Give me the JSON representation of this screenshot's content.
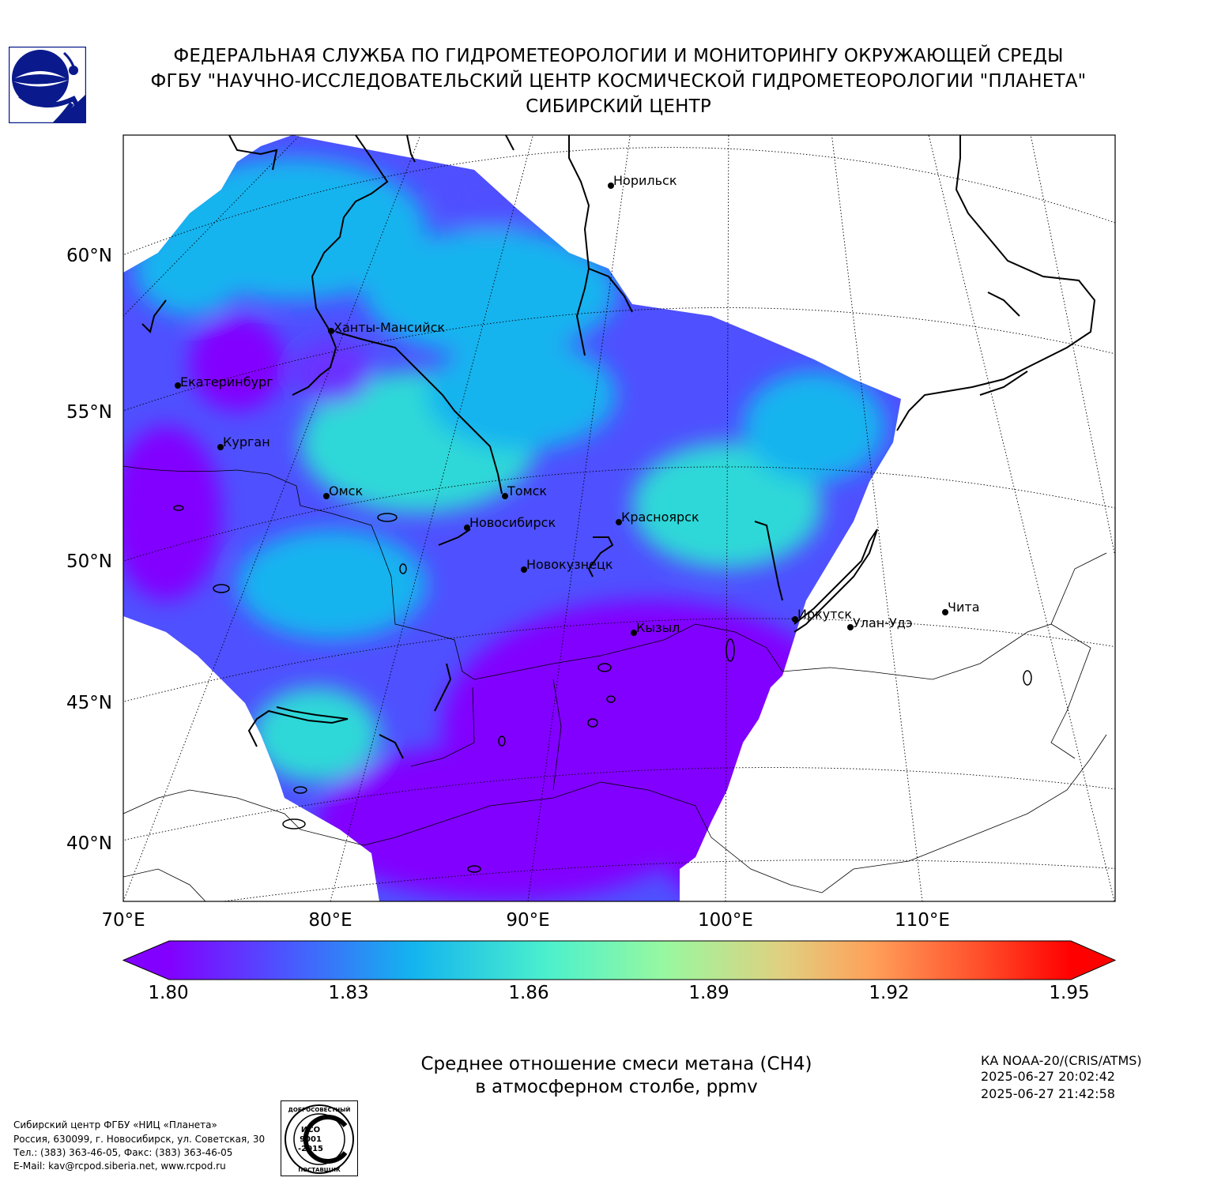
{
  "header": {
    "line1": "ФЕДЕРАЛЬНАЯ СЛУЖБА ПО ГИДРОМЕТЕОРОЛОГИИ И МОНИТОРИНГУ ОКРУЖАЮЩЕЙ СРЕДЫ",
    "line2": "ФГБУ \"НАУЧНО-ИССЛЕДОВАТЕЛЬСКИЙ ЦЕНТР КОСМИЧЕСКОЙ ГИДРОМЕТЕОРОЛОГИИ \"ПЛАНЕТА\"",
    "line3": "СИБИРСКИЙ ЦЕНТР"
  },
  "map": {
    "lat_labels": [
      "60°N",
      "55°N",
      "50°N",
      "45°N",
      "40°N"
    ],
    "lon_labels": [
      "70°E",
      "80°E",
      "90°E",
      "100°E",
      "110°E"
    ],
    "cities": [
      "Норильск",
      "Ханты-Мансийск",
      "Екатеринбург",
      "Курган",
      "Омск",
      "Томск",
      "Новосибирск",
      "Красноярск",
      "Новокузнецк",
      "Иркутск",
      "Улан-Удэ",
      "Чита",
      "Кызыл"
    ]
  },
  "colorbar": {
    "ticks": [
      "1.80",
      "1.83",
      "1.86",
      "1.89",
      "1.92",
      "1.95"
    ],
    "min": 1.8,
    "max": 1.95,
    "colors": [
      "#8200ff",
      "#4f50ff",
      "#13b4ef",
      "#4cf0cc",
      "#98f8a0",
      "#e0d080",
      "#ffa05a",
      "#ff4e2a",
      "#ff0000"
    ]
  },
  "caption": {
    "line1": "Среднее отношение смеси метана (CH4)",
    "line2": "в атмосферном столбе, ppmv"
  },
  "satellite": {
    "name": "КА NOAA-20/(CRIS/ATMS)",
    "start": "2025-06-27 20:02:42",
    "end": "2025-06-27 21:42:58"
  },
  "footer": {
    "line1": "Сибирский центр ФГБУ «НИЦ «Планета»",
    "line2": "Россия, 630099, г. Новосибирск, ул. Советская, 30",
    "line3": "Тел.: (383) 363-46-05, Факс: (383) 363-46-05",
    "line4": "E-Mail: kav@rcpod.siberia.net, www.rcpod.ru"
  },
  "iso_badge": {
    "top": "ДОБРОСОВЕСТНЫЙ",
    "code1": "ИСО",
    "code2": "9001",
    "code3": "-2015",
    "bottom": "ПОСТАВЩИК"
  }
}
